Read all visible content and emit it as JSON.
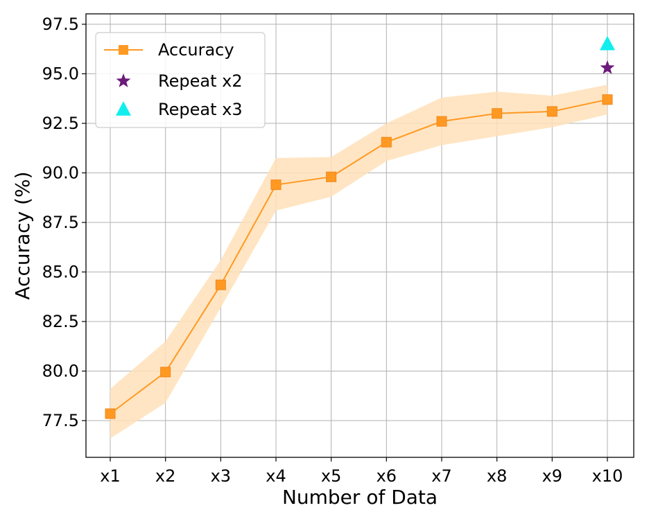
{
  "chart_data": {
    "type": "line",
    "xlabel": "Number of Data",
    "ylabel": "Accuracy (%)",
    "categories": [
      "x1",
      "x2",
      "x3",
      "x4",
      "x5",
      "x6",
      "x7",
      "x8",
      "x9",
      "x10"
    ],
    "ylim": [
      76.4,
      97.5
    ],
    "yticks": [
      "77.5",
      "80.0",
      "82.5",
      "85.0",
      "87.5",
      "90.0",
      "92.5",
      "95.0",
      "97.5"
    ],
    "grid": true,
    "legend_position": "top-left",
    "series": [
      {
        "name": "Accuracy",
        "marker": "square",
        "color": "#ff9922",
        "values": [
          77.85,
          79.95,
          84.35,
          89.4,
          89.8,
          91.55,
          92.6,
          93.0,
          93.1,
          93.7
        ],
        "band_lower": [
          76.6,
          78.4,
          83.2,
          88.1,
          88.8,
          90.6,
          91.4,
          91.85,
          92.3,
          92.95
        ],
        "band_upper": [
          79.1,
          81.5,
          85.6,
          90.75,
          90.8,
          92.5,
          93.8,
          94.1,
          93.9,
          94.45
        ],
        "band_color": "#ffe0b8"
      },
      {
        "name": "Repeat x2",
        "marker": "star",
        "color": "#6c1a7a",
        "points": [
          {
            "x": "x10",
            "y": 95.3
          }
        ]
      },
      {
        "name": "Repeat x3",
        "marker": "triangle",
        "color": "#11eeee",
        "points": [
          {
            "x": "x10",
            "y": 96.5
          }
        ]
      }
    ]
  }
}
